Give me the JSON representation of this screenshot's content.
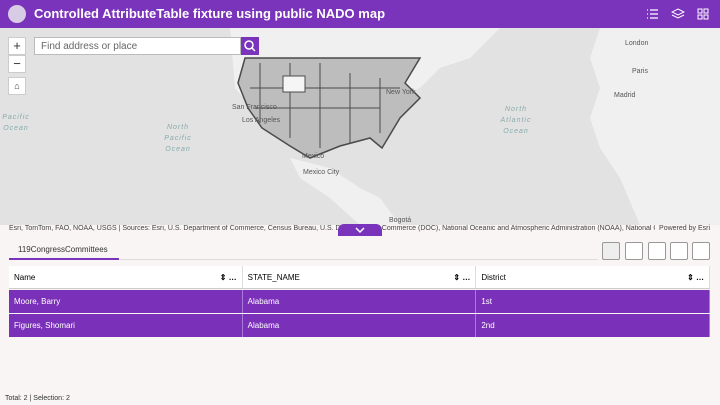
{
  "header": {
    "title": "Controlled AttributeTable fixture using public NADO map"
  },
  "map": {
    "search_placeholder": "Find address or place",
    "zoom_in": "+",
    "zoom_out": "−",
    "labels": [
      "London",
      "Paris",
      "Madrid",
      "Pacific Ocean",
      "North Pacific Ocean",
      "North Atlantic Ocean",
      "San Francisco",
      "Los Angeles",
      "Mexico",
      "Mexico City",
      "New York",
      "Bogotá"
    ],
    "attribution": "Esri, TomTom, FAO, NOAA, USGS | Sources: Esri, U.S. Department of Commerce, Census Bureau, U.S. Department of Commerce (DOC), National Oceanic and Atmospheric Administration (NOAA), National Ocea...",
    "powered_by": "Powered by Esri"
  },
  "table": {
    "tab": "119CongressCommittees",
    "columns": [
      "Name",
      "STATE_NAME",
      "District"
    ],
    "rows": [
      [
        "Moore, Barry",
        "Alabama",
        "1st"
      ],
      [
        "Figures, Shomari",
        "Alabama",
        "2nd"
      ]
    ]
  },
  "footer": {
    "status": "Total: 2 | Selection: 2"
  }
}
